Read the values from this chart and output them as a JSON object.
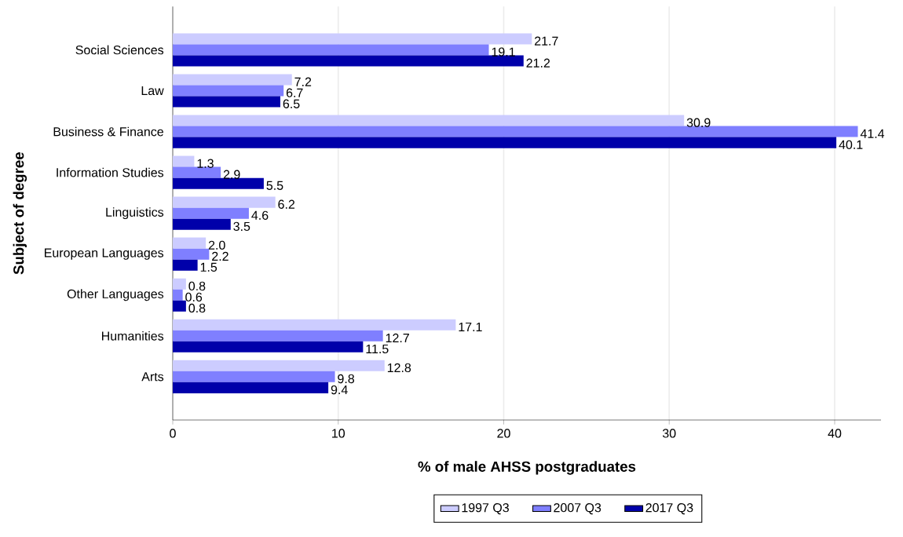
{
  "chart_data": {
    "type": "bar",
    "orientation": "horizontal",
    "xlabel": "% of male AHSS postgraduates",
    "ylabel": "Subject of degree",
    "categories": [
      "Social Sciences",
      "Law",
      "Business & Finance",
      "Information Studies",
      "Linguistics",
      "European Languages",
      "Other Languages",
      "Humanities",
      "Arts"
    ],
    "series": [
      {
        "name": "1997 Q3",
        "color": "#ccccff",
        "values": [
          21.7,
          7.2,
          30.9,
          1.3,
          6.2,
          2.0,
          0.8,
          17.1,
          12.8
        ],
        "value_labels": [
          "21.7",
          "7.2",
          "30.9",
          "1.3",
          "6.2",
          "2.0",
          "0.8",
          "17.1",
          "12.8"
        ]
      },
      {
        "name": "2007 Q3",
        "color": "#7f7fff",
        "values": [
          19.1,
          6.7,
          41.4,
          2.9,
          4.6,
          2.2,
          0.6,
          12.7,
          9.8
        ],
        "value_labels": [
          "19.1",
          "6.7",
          "41.4",
          "2.9",
          "4.6",
          "2.2",
          "0.6",
          "12.7",
          "9.8"
        ]
      },
      {
        "name": "2017 Q3",
        "color": "#0000aa",
        "values": [
          21.2,
          6.5,
          40.1,
          5.5,
          3.5,
          1.5,
          0.8,
          11.5,
          9.4
        ],
        "value_labels": [
          "21.2",
          "6.5",
          "40.1",
          "5.5",
          "3.5",
          "1.5",
          "0.8",
          "11.5",
          "9.4"
        ]
      }
    ],
    "xlim": [
      0,
      42.8
    ],
    "xticks": [
      0,
      10,
      20,
      30,
      40
    ],
    "grid": "x",
    "legend": "bottom"
  }
}
